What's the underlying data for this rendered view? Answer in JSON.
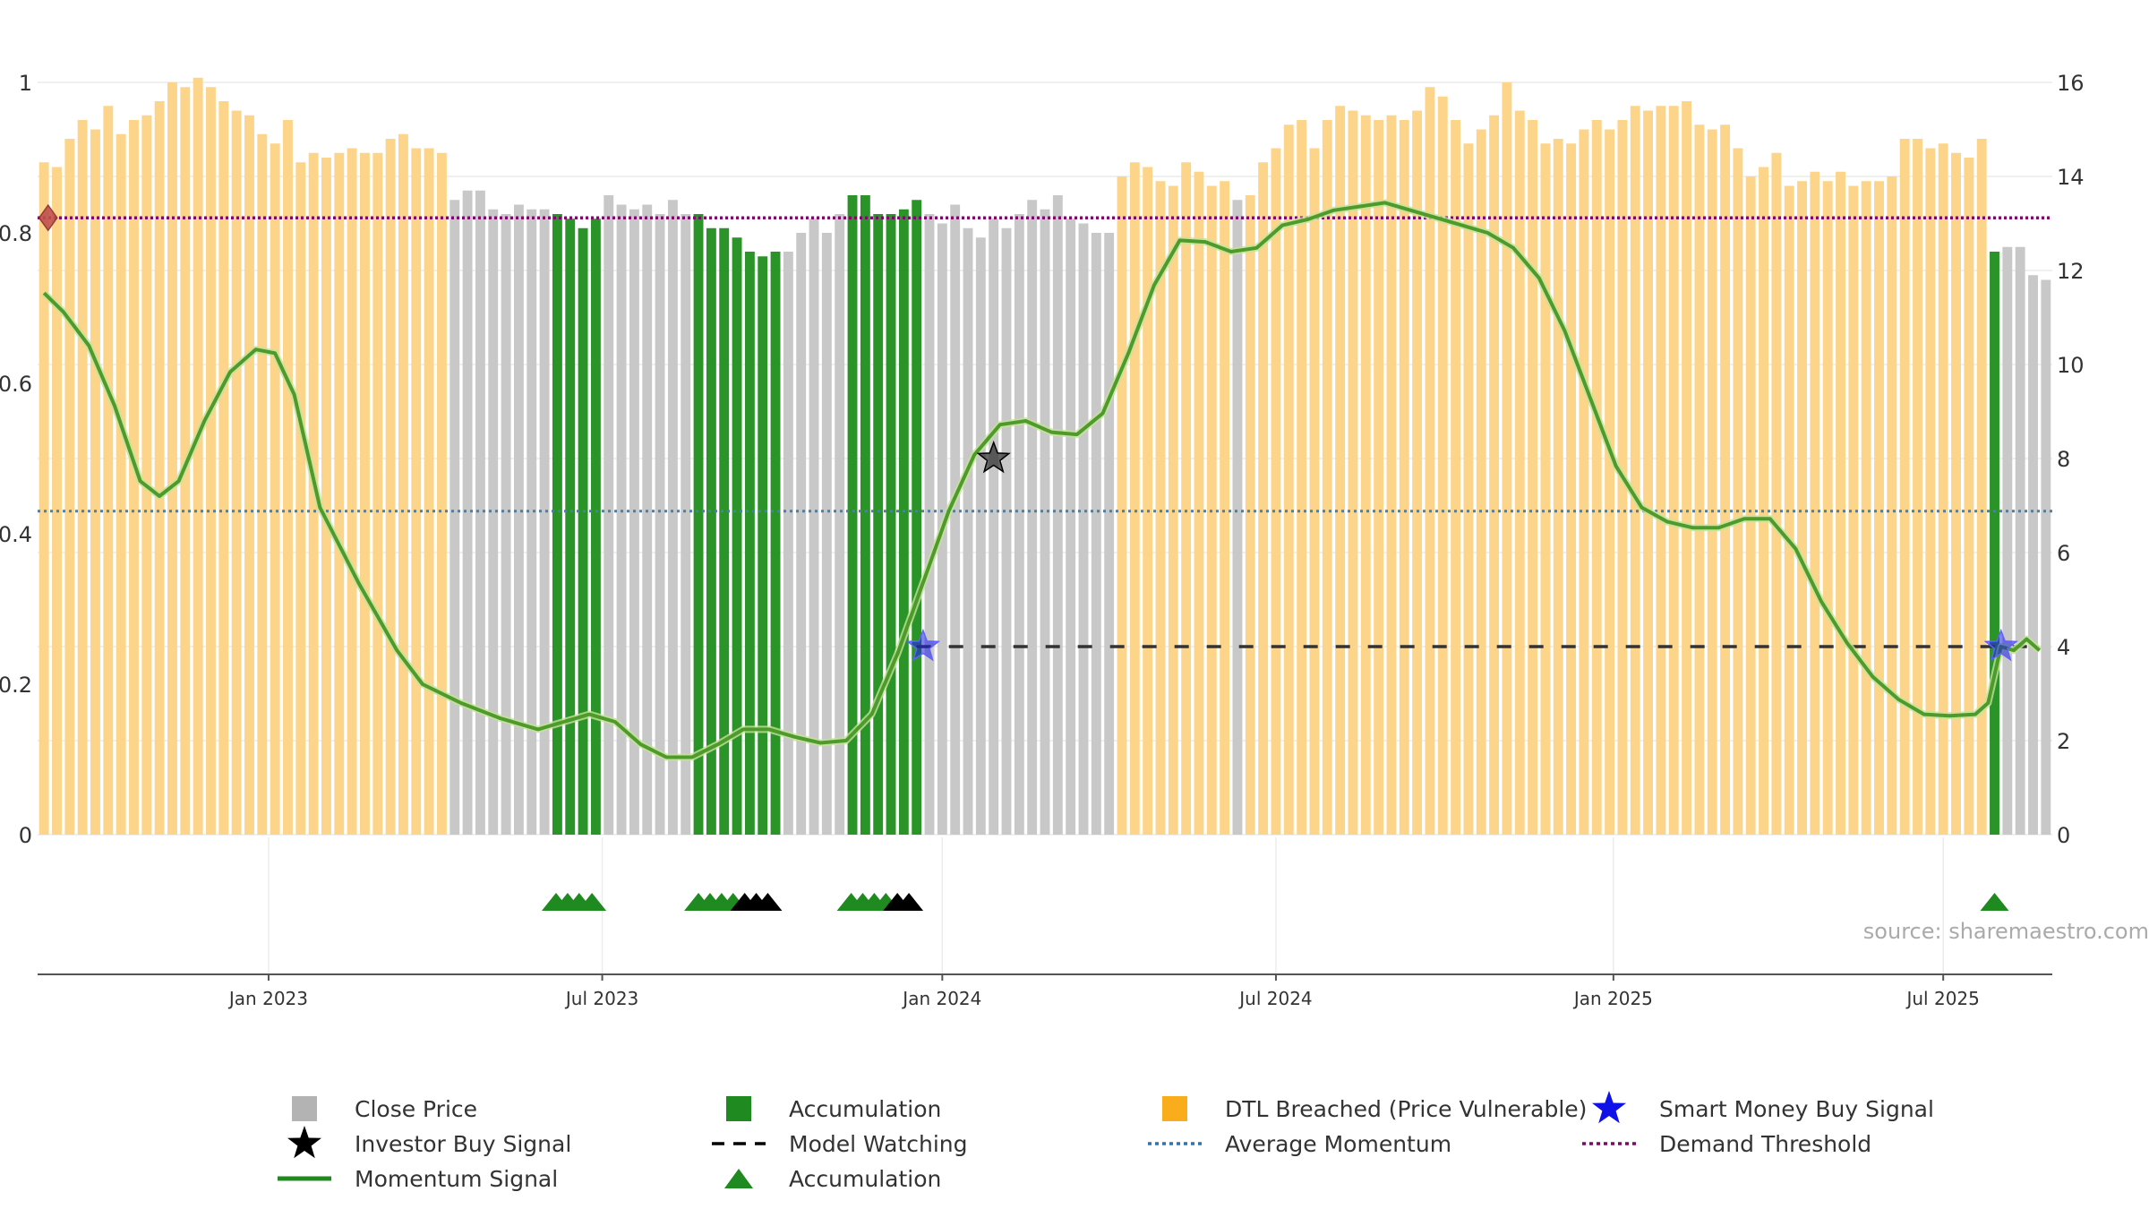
{
  "chart_data": {
    "type": "bar",
    "title": "",
    "x_ticks": [
      {
        "label": "Jan 2023",
        "week": 18
      },
      {
        "label": "Jul 2023",
        "week": 44
      },
      {
        "label": "Jan 2024",
        "week": 70.5
      },
      {
        "label": "Jul 2024",
        "week": 96.5
      },
      {
        "label": "Jan 2025",
        "week": 122.8
      },
      {
        "label": "Jul 2025",
        "week": 148.5
      }
    ],
    "left_axis": {
      "min": 0,
      "max": 1,
      "ticks": [
        "0",
        "0.2",
        "0.4",
        "0.6",
        "0.8",
        "1"
      ]
    },
    "right_axis": {
      "min": 0,
      "max": 16,
      "ticks": [
        "0",
        "2",
        "4",
        "6",
        "8",
        "10",
        "12",
        "14",
        "16"
      ]
    },
    "close_price": [
      14.3,
      14.2,
      14.8,
      15.2,
      15.0,
      15.5,
      14.9,
      15.2,
      15.3,
      15.6,
      16.0,
      15.9,
      16.1,
      15.9,
      15.6,
      15.4,
      15.3,
      14.9,
      14.7,
      15.2,
      14.3,
      14.5,
      14.4,
      14.5,
      14.6,
      14.5,
      14.5,
      14.8,
      14.9,
      14.6,
      14.6,
      14.5,
      13.5,
      13.7,
      13.7,
      13.3,
      13.2,
      13.4,
      13.3,
      13.3,
      13.2,
      13.1,
      12.9,
      13.1,
      13.6,
      13.4,
      13.3,
      13.4,
      13.2,
      13.5,
      13.2,
      13.2,
      12.9,
      12.9,
      12.7,
      12.4,
      12.3,
      12.4,
      12.4,
      12.8,
      13.1,
      12.8,
      13.2,
      13.6,
      13.6,
      13.2,
      13.2,
      13.3,
      13.5,
      13.2,
      13.0,
      13.4,
      12.9,
      12.7,
      13.1,
      12.9,
      13.2,
      13.5,
      13.3,
      13.6,
      13.1,
      13.0,
      12.8,
      12.8,
      14.0,
      14.3,
      14.2,
      13.9,
      13.8,
      14.3,
      14.1,
      13.8,
      13.9,
      13.5,
      13.6,
      14.3,
      14.6,
      15.1,
      15.2,
      14.6,
      15.2,
      15.5,
      15.4,
      15.3,
      15.2,
      15.3,
      15.2,
      15.4,
      15.9,
      15.7,
      15.2,
      14.7,
      15.0,
      15.3,
      16.0,
      15.4,
      15.2,
      14.7,
      14.8,
      14.7,
      15.0,
      15.2,
      15.0,
      15.2,
      15.5,
      15.4,
      15.5,
      15.5,
      15.6,
      15.1,
      15.0,
      15.1,
      14.6,
      14.0,
      14.2,
      14.5,
      13.8,
      13.9,
      14.1,
      13.9,
      14.1,
      13.8,
      13.9,
      13.9,
      14.0,
      14.8,
      14.8,
      14.6,
      14.7,
      14.5,
      14.4,
      14.8,
      12.4,
      12.5,
      12.5,
      11.9,
      11.8
    ],
    "bar_state_runs": [
      {
        "state": "dtl",
        "count": 32
      },
      {
        "state": "close",
        "count": 8
      },
      {
        "state": "accumulation",
        "count": 4
      },
      {
        "state": "close",
        "count": 7
      },
      {
        "state": "accumulation",
        "count": 7
      },
      {
        "state": "close",
        "count": 5
      },
      {
        "state": "accumulation",
        "count": 6
      },
      {
        "state": "close",
        "count": 15
      },
      {
        "state": "dtl",
        "count": 9
      },
      {
        "state": "close",
        "count": 1
      },
      {
        "state": "dtl",
        "count": 58
      },
      {
        "state": "accumulation",
        "count": 1
      },
      {
        "state": "close",
        "count": 4
      }
    ],
    "momentum_signal": [
      {
        "w": 0.5,
        "v": 0.72
      },
      {
        "w": 2,
        "v": 0.695
      },
      {
        "w": 4,
        "v": 0.65
      },
      {
        "w": 6,
        "v": 0.57
      },
      {
        "w": 8,
        "v": 0.47
      },
      {
        "w": 9.5,
        "v": 0.45
      },
      {
        "w": 11,
        "v": 0.47
      },
      {
        "w": 13,
        "v": 0.55
      },
      {
        "w": 15,
        "v": 0.615
      },
      {
        "w": 17,
        "v": 0.645
      },
      {
        "w": 18.5,
        "v": 0.64
      },
      {
        "w": 20,
        "v": 0.585
      },
      {
        "w": 22,
        "v": 0.435
      },
      {
        "w": 25,
        "v": 0.335
      },
      {
        "w": 28,
        "v": 0.245
      },
      {
        "w": 30,
        "v": 0.2
      },
      {
        "w": 33,
        "v": 0.175
      },
      {
        "w": 36,
        "v": 0.155
      },
      {
        "w": 39,
        "v": 0.14
      },
      {
        "w": 41,
        "v": 0.15
      },
      {
        "w": 43,
        "v": 0.16
      },
      {
        "w": 45,
        "v": 0.15
      },
      {
        "w": 47,
        "v": 0.12
      },
      {
        "w": 49,
        "v": 0.103
      },
      {
        "w": 51,
        "v": 0.103
      },
      {
        "w": 53,
        "v": 0.12
      },
      {
        "w": 55,
        "v": 0.14
      },
      {
        "w": 57,
        "v": 0.14
      },
      {
        "w": 59,
        "v": 0.13
      },
      {
        "w": 61,
        "v": 0.122
      },
      {
        "w": 63,
        "v": 0.125
      },
      {
        "w": 65,
        "v": 0.16
      },
      {
        "w": 67,
        "v": 0.24
      },
      {
        "w": 69,
        "v": 0.335
      },
      {
        "w": 71,
        "v": 0.43
      },
      {
        "w": 73,
        "v": 0.505
      },
      {
        "w": 75,
        "v": 0.545
      },
      {
        "w": 77,
        "v": 0.55
      },
      {
        "w": 79,
        "v": 0.535
      },
      {
        "w": 81,
        "v": 0.532
      },
      {
        "w": 83,
        "v": 0.56
      },
      {
        "w": 85,
        "v": 0.64
      },
      {
        "w": 87,
        "v": 0.73
      },
      {
        "w": 89,
        "v": 0.79
      },
      {
        "w": 91,
        "v": 0.788
      },
      {
        "w": 93,
        "v": 0.775
      },
      {
        "w": 95,
        "v": 0.78
      },
      {
        "w": 97,
        "v": 0.81
      },
      {
        "w": 99,
        "v": 0.818
      },
      {
        "w": 101,
        "v": 0.83
      },
      {
        "w": 103,
        "v": 0.835
      },
      {
        "w": 105,
        "v": 0.84
      },
      {
        "w": 107,
        "v": 0.83
      },
      {
        "w": 109,
        "v": 0.82
      },
      {
        "w": 111,
        "v": 0.81
      },
      {
        "w": 113,
        "v": 0.8
      },
      {
        "w": 115,
        "v": 0.78
      },
      {
        "w": 117,
        "v": 0.74
      },
      {
        "w": 119,
        "v": 0.67
      },
      {
        "w": 121,
        "v": 0.58
      },
      {
        "w": 123,
        "v": 0.49
      },
      {
        "w": 125,
        "v": 0.435
      },
      {
        "w": 127,
        "v": 0.416
      },
      {
        "w": 129,
        "v": 0.408
      },
      {
        "w": 131,
        "v": 0.408
      },
      {
        "w": 133,
        "v": 0.42
      },
      {
        "w": 135,
        "v": 0.42
      },
      {
        "w": 137,
        "v": 0.38
      },
      {
        "w": 139,
        "v": 0.31
      },
      {
        "w": 141,
        "v": 0.255
      },
      {
        "w": 143,
        "v": 0.21
      },
      {
        "w": 145,
        "v": 0.18
      },
      {
        "w": 147,
        "v": 0.16
      },
      {
        "w": 149,
        "v": 0.158
      },
      {
        "w": 151,
        "v": 0.16
      },
      {
        "w": 152,
        "v": 0.175
      },
      {
        "w": 153,
        "v": 0.25
      },
      {
        "w": 154,
        "v": 0.245
      },
      {
        "w": 155,
        "v": 0.26
      },
      {
        "w": 156,
        "v": 0.245
      }
    ],
    "average_momentum": 0.43,
    "demand_threshold": 0.82,
    "model_watching": {
      "start_week": 68.5,
      "end_week": 156,
      "value": 0.25
    },
    "investor_buy_signals": [
      {
        "week": 74.5,
        "value": 0.5
      }
    ],
    "smart_money_buy_signals": [
      {
        "week": 69,
        "value": 0.25
      },
      {
        "week": 153,
        "value": 0.25
      }
    ],
    "threshold_marker": {
      "week": 0.4,
      "value": 0.82
    },
    "accumulation_markers": [
      {
        "week": 40.4,
        "color": "green"
      },
      {
        "week": 41.3,
        "color": "green"
      },
      {
        "week": 42.2,
        "color": "green"
      },
      {
        "week": 43.2,
        "color": "green"
      },
      {
        "week": 51.5,
        "color": "green"
      },
      {
        "week": 52.4,
        "color": "green"
      },
      {
        "week": 53.3,
        "color": "green"
      },
      {
        "week": 54.2,
        "color": "green"
      },
      {
        "week": 55.1,
        "color": "black"
      },
      {
        "week": 56.0,
        "color": "black"
      },
      {
        "week": 56.9,
        "color": "black"
      },
      {
        "week": 63.4,
        "color": "green"
      },
      {
        "week": 64.3,
        "color": "green"
      },
      {
        "week": 65.2,
        "color": "green"
      },
      {
        "week": 66.1,
        "color": "green"
      },
      {
        "week": 67.0,
        "color": "black"
      },
      {
        "week": 67.9,
        "color": "black"
      },
      {
        "week": 152.5,
        "color": "green"
      }
    ],
    "legend": [
      {
        "label": "Close Price",
        "symbol": "square-gray"
      },
      {
        "label": "Accumulation",
        "symbol": "square-green"
      },
      {
        "label": "DTL Breached (Price Vulnerable)",
        "symbol": "square-orange"
      },
      {
        "label": "Smart Money Buy Signal",
        "symbol": "star-blue"
      },
      {
        "label": "Investor Buy Signal",
        "symbol": "star-black"
      },
      {
        "label": "Model Watching",
        "symbol": "dash-black"
      },
      {
        "label": "Average Momentum",
        "symbol": "dot-blue"
      },
      {
        "label": "Demand Threshold",
        "symbol": "dot-purple"
      },
      {
        "label": "Momentum Signal",
        "symbol": "line-green"
      },
      {
        "label": "Accumulation",
        "symbol": "triangle-green"
      }
    ],
    "colors": {
      "close": "#c8c8c8",
      "accumulation": "#2b9428",
      "dtl": "#fdd58a",
      "momentum": "#4e9a2a",
      "average_momentum": "#4a7fa8",
      "demand_threshold": "#7b0a6a",
      "model_watching": "#333333",
      "smart_money": "#1c1ee0",
      "investor": "#000000",
      "triangle_green": "#1f8a1f",
      "triangle_black": "#000000"
    }
  },
  "source_text": "source: sharemaestro.com"
}
